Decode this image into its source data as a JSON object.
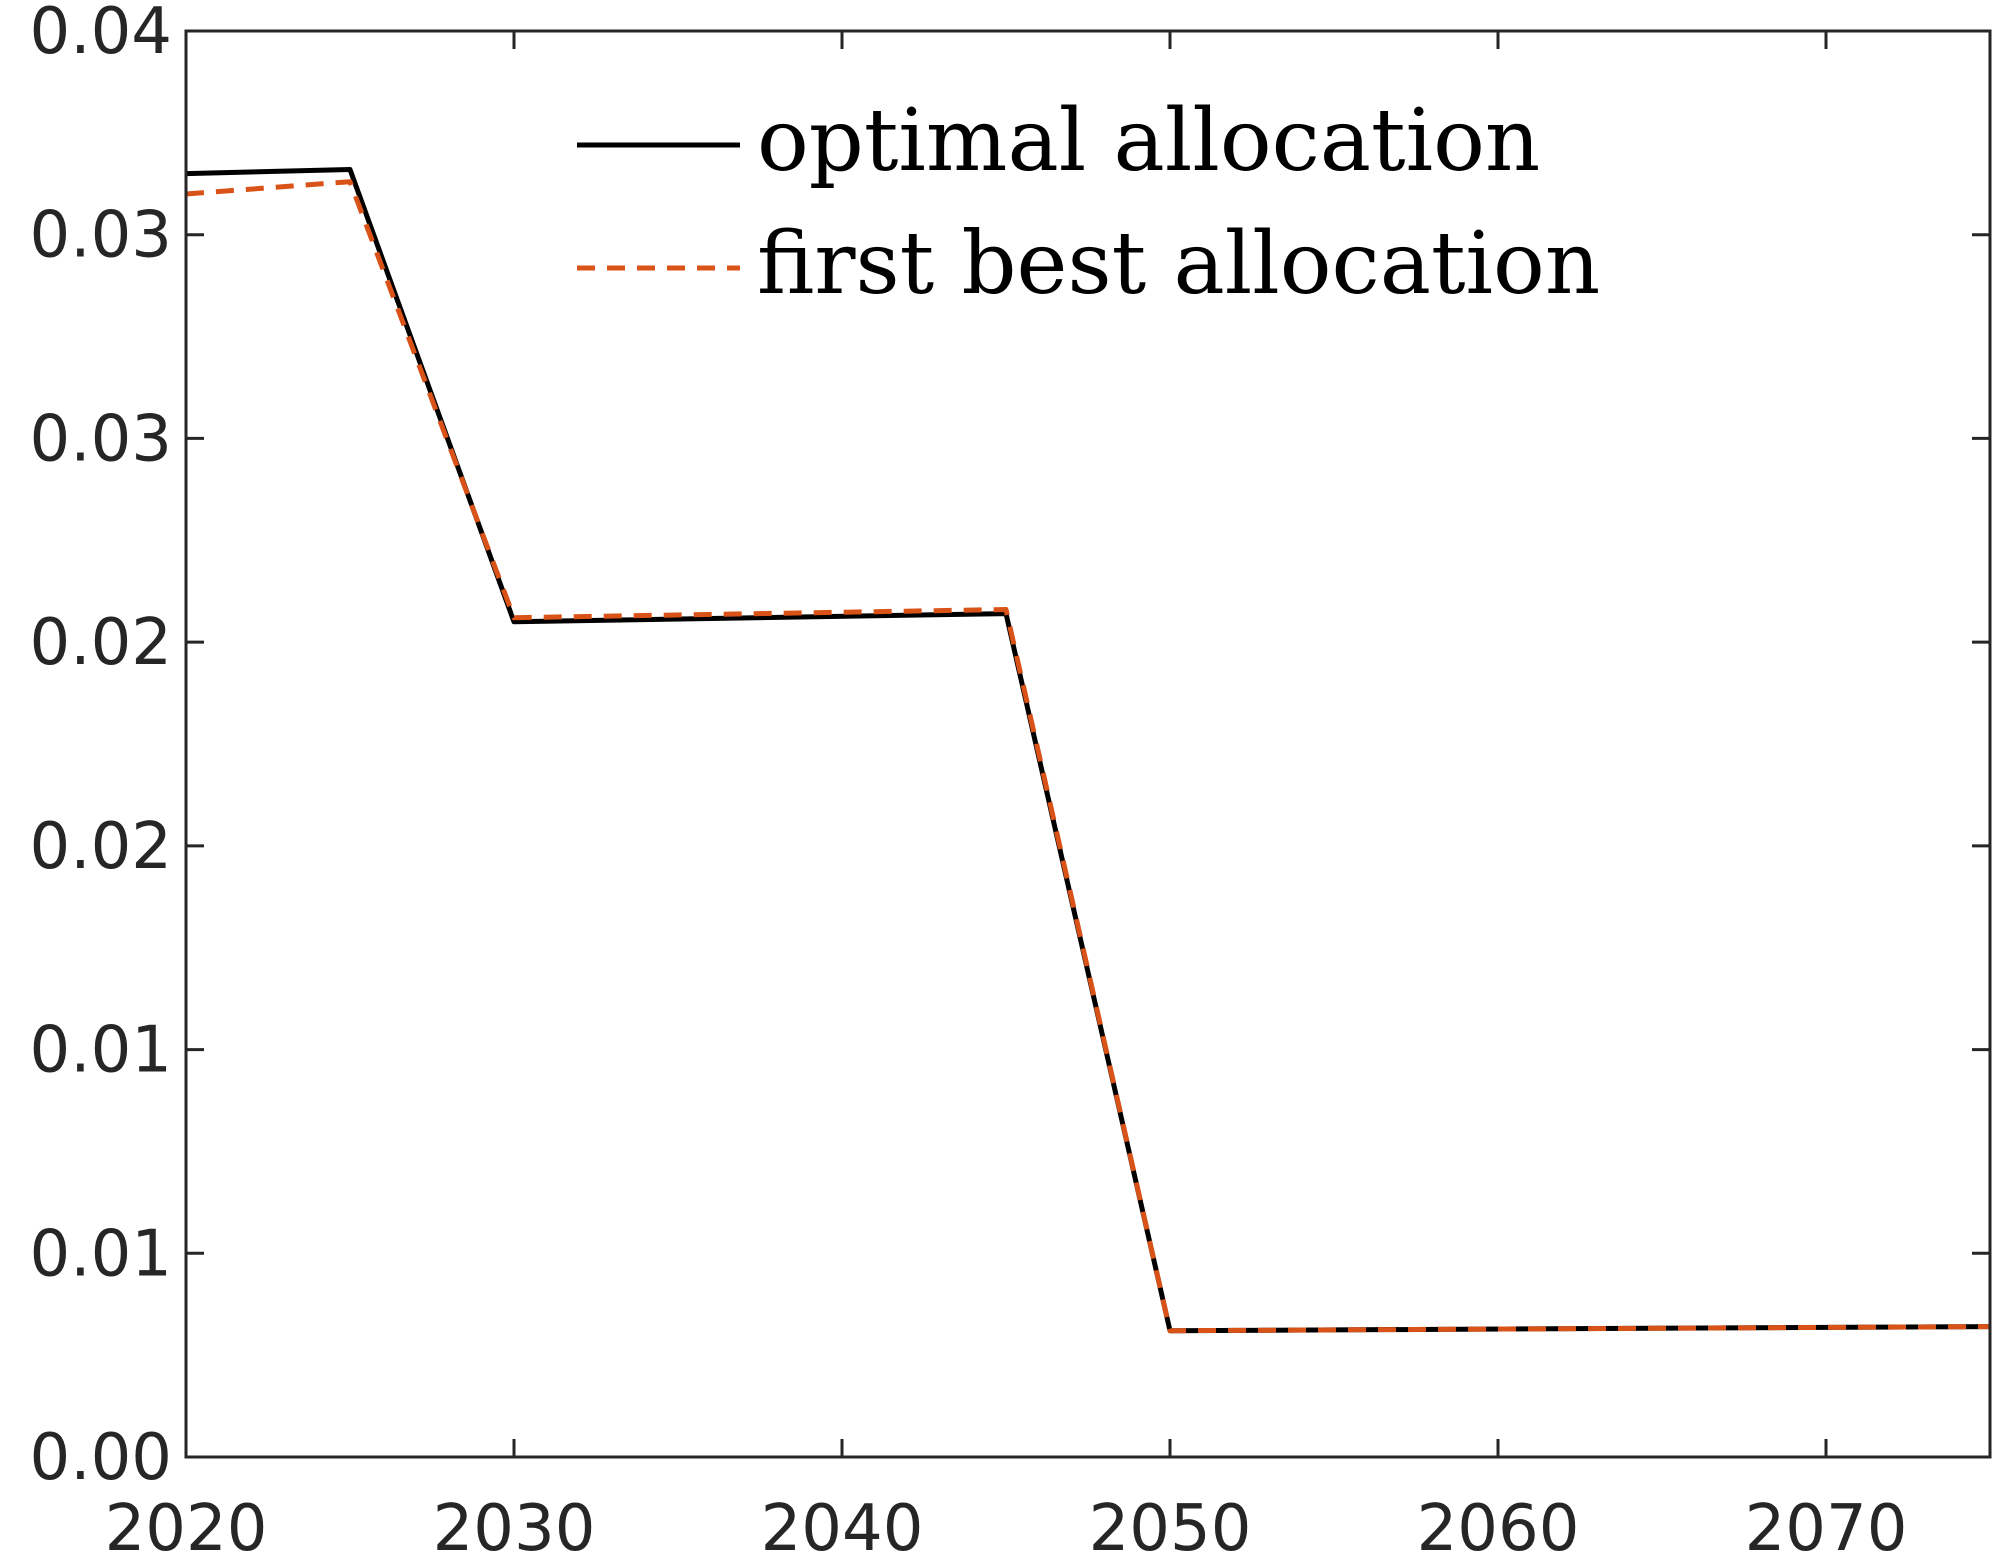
{
  "chart_data": {
    "type": "line",
    "title": "",
    "xlabel": "",
    "ylabel": "",
    "xlim": [
      2020,
      2075
    ],
    "ylim": [
      0,
      0.035
    ],
    "x_ticks": [
      2020,
      2030,
      2040,
      2050,
      2060,
      2070
    ],
    "x_tick_labels": [
      "2020",
      "2030",
      "2040",
      "2050",
      "2060",
      "2070"
    ],
    "y_ticks": [
      0,
      0.005,
      0.01,
      0.015,
      0.02,
      0.025,
      0.03,
      0.035
    ],
    "y_tick_labels": [
      "0.00",
      "0.01",
      "0.01",
      "0.02",
      "0.02",
      "0.03",
      "0.03",
      "0.04"
    ],
    "grid": false,
    "legend_position": "top-center",
    "series": [
      {
        "name": "optimal allocation",
        "style": "solid",
        "color": "#000000",
        "x": [
          2020,
          2025,
          2030,
          2045,
          2050,
          2075
        ],
        "y": [
          0.0315,
          0.0316,
          0.0205,
          0.0207,
          0.0031,
          0.0032
        ]
      },
      {
        "name": "first best allocation",
        "style": "dashed",
        "color": "#D95319",
        "x": [
          2020,
          2025,
          2030,
          2045,
          2050,
          2075
        ],
        "y": [
          0.031,
          0.0313,
          0.0206,
          0.0208,
          0.0031,
          0.0032
        ]
      }
    ]
  }
}
